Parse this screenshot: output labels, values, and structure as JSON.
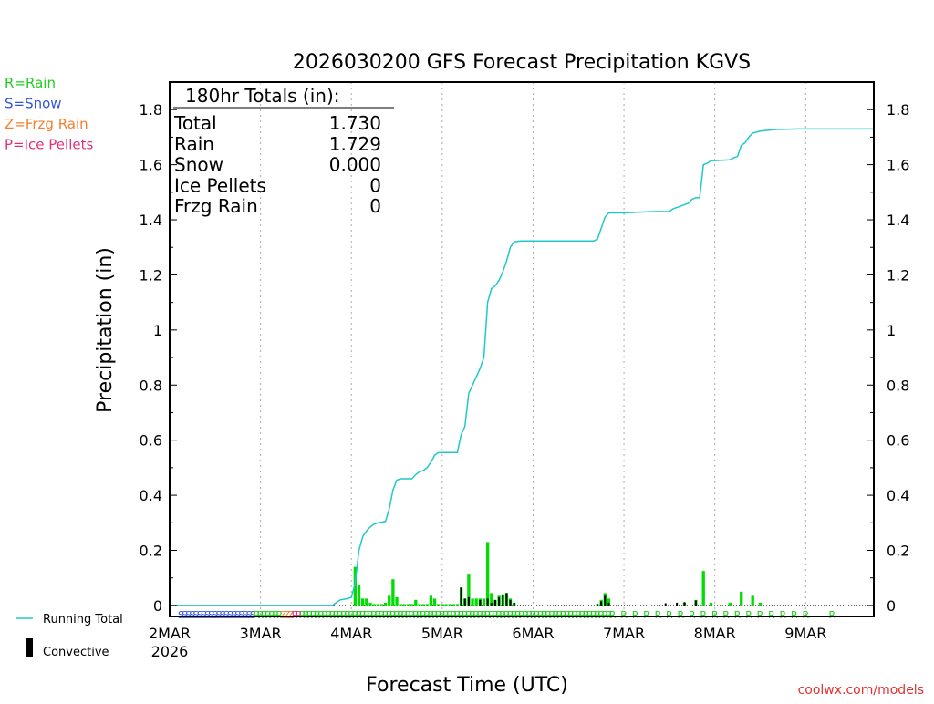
{
  "chart_data": {
    "type": "bar",
    "title": "2026030200 GFS Forecast Precipitation KGVS",
    "xlabel": "Forecast Time (UTC)",
    "ylabel": "Precipitation (in)",
    "ylim": [
      -0.04,
      1.9
    ],
    "xlim_hours": [
      0,
      186
    ],
    "y_ticks": [
      0,
      0.2,
      0.4,
      0.6,
      0.8,
      1,
      1.2,
      1.4,
      1.6,
      1.8
    ],
    "y_tick_labels": [
      "0",
      "0.2",
      "0.4",
      "0.6",
      "0.8",
      "1",
      "1.2",
      "1.4",
      "1.6",
      "1.8"
    ],
    "x_ticks": [
      {
        "hour": 0,
        "label": "2MAR",
        "sublabel": "2026"
      },
      {
        "hour": 24,
        "label": "3MAR"
      },
      {
        "hour": 48,
        "label": "4MAR"
      },
      {
        "hour": 72,
        "label": "5MAR"
      },
      {
        "hour": 96,
        "label": "6MAR"
      },
      {
        "hour": 120,
        "label": "7MAR"
      },
      {
        "hour": 144,
        "label": "8MAR"
      },
      {
        "hour": 168,
        "label": "9MAR"
      }
    ],
    "ptype_legend": [
      {
        "text": "R=Rain",
        "color": "#22cc22"
      },
      {
        "text": "S=Snow",
        "color": "#3355dd"
      },
      {
        "text": "Z=Frzg Rain",
        "color": "#f08030"
      },
      {
        "text": "P=Ice Pellets",
        "color": "#e0307a"
      }
    ],
    "series_legend": [
      {
        "name": "Running Total",
        "color": "#20c8c8",
        "kind": "line"
      },
      {
        "name": "Convective",
        "color": "#000000",
        "kind": "bar"
      }
    ],
    "totals": {
      "header": "180hr Totals (in):",
      "rows": [
        {
          "label": "Total",
          "value": "1.730"
        },
        {
          "label": "Rain",
          "value": "1.729"
        },
        {
          "label": "Snow",
          "value": "0.000"
        },
        {
          "label": "Ice Pellets",
          "value": "0"
        },
        {
          "label": "Frzg Rain",
          "value": "0"
        }
      ]
    },
    "series": [
      {
        "name": "Running Total",
        "color": "#20c8c8",
        "points": [
          [
            0,
            0
          ],
          [
            24,
            0
          ],
          [
            43,
            0
          ],
          [
            44,
            0.01
          ],
          [
            45,
            0.02
          ],
          [
            47,
            0.025
          ],
          [
            48,
            0.03
          ],
          [
            49,
            0.08
          ],
          [
            50,
            0.2
          ],
          [
            51,
            0.25
          ],
          [
            52,
            0.27
          ],
          [
            53,
            0.285
          ],
          [
            54,
            0.295
          ],
          [
            55,
            0.3
          ],
          [
            57,
            0.305
          ],
          [
            58,
            0.35
          ],
          [
            59,
            0.42
          ],
          [
            60,
            0.455
          ],
          [
            61,
            0.46
          ],
          [
            62,
            0.46
          ],
          [
            63,
            0.46
          ],
          [
            64,
            0.46
          ],
          [
            65,
            0.475
          ],
          [
            66,
            0.485
          ],
          [
            67,
            0.49
          ],
          [
            68,
            0.5
          ],
          [
            69,
            0.52
          ],
          [
            70,
            0.545
          ],
          [
            71,
            0.555
          ],
          [
            72,
            0.555
          ],
          [
            73,
            0.555
          ],
          [
            74,
            0.555
          ],
          [
            75,
            0.555
          ],
          [
            76,
            0.555
          ],
          [
            77,
            0.62
          ],
          [
            78,
            0.65
          ],
          [
            79,
            0.77
          ],
          [
            80,
            0.8
          ],
          [
            81,
            0.83
          ],
          [
            82,
            0.86
          ],
          [
            83,
            0.9
          ],
          [
            84,
            1.1
          ],
          [
            85,
            1.15
          ],
          [
            86,
            1.16
          ],
          [
            87,
            1.18
          ],
          [
            88,
            1.21
          ],
          [
            89,
            1.25
          ],
          [
            90,
            1.3
          ],
          [
            91,
            1.32
          ],
          [
            92,
            1.322
          ],
          [
            93,
            1.323
          ],
          [
            94,
            1.323
          ],
          [
            96,
            1.323
          ],
          [
            100,
            1.323
          ],
          [
            105,
            1.323
          ],
          [
            112,
            1.323
          ],
          [
            113,
            1.33
          ],
          [
            114,
            1.37
          ],
          [
            115,
            1.41
          ],
          [
            116,
            1.425
          ],
          [
            117,
            1.425
          ],
          [
            120,
            1.425
          ],
          [
            124,
            1.428
          ],
          [
            128,
            1.43
          ],
          [
            132,
            1.43
          ],
          [
            133,
            1.44
          ],
          [
            134,
            1.445
          ],
          [
            135,
            1.45
          ],
          [
            136,
            1.455
          ],
          [
            137,
            1.46
          ],
          [
            138,
            1.475
          ],
          [
            139,
            1.48
          ],
          [
            140,
            1.48
          ],
          [
            141,
            1.6
          ],
          [
            142,
            1.605
          ],
          [
            143,
            1.615
          ],
          [
            144,
            1.615
          ],
          [
            148,
            1.618
          ],
          [
            149,
            1.625
          ],
          [
            150,
            1.63
          ],
          [
            151,
            1.67
          ],
          [
            152,
            1.68
          ],
          [
            153,
            1.7
          ],
          [
            154,
            1.715
          ],
          [
            156,
            1.722
          ],
          [
            160,
            1.728
          ],
          [
            166,
            1.73
          ],
          [
            186,
            1.73
          ]
        ]
      },
      {
        "name": "Precipitation",
        "color": "#00dd00",
        "bars": [
          [
            49,
            0.14
          ],
          [
            50,
            0.075
          ],
          [
            51,
            0.025
          ],
          [
            52,
            0.025
          ],
          [
            53,
            0.01
          ],
          [
            54,
            0.005
          ],
          [
            55,
            0.005
          ],
          [
            56,
            0.005
          ],
          [
            57,
            0.01
          ],
          [
            58,
            0.035
          ],
          [
            59,
            0.095
          ],
          [
            60,
            0.03
          ],
          [
            61,
            0.005
          ],
          [
            62,
            0.005
          ],
          [
            63,
            0.005
          ],
          [
            64,
            0.005
          ],
          [
            65,
            0.02
          ],
          [
            66,
            0.005
          ],
          [
            67,
            0.005
          ],
          [
            68,
            0.005
          ],
          [
            69,
            0.035
          ],
          [
            70,
            0.025
          ],
          [
            71,
            0.005
          ],
          [
            72,
            0.005
          ],
          [
            73,
            0.005
          ],
          [
            74,
            0.005
          ],
          [
            75,
            0.005
          ],
          [
            76,
            0.005
          ],
          [
            77,
            0.065
          ],
          [
            78,
            0.025
          ],
          [
            79,
            0.115
          ],
          [
            80,
            0.025
          ],
          [
            81,
            0.025
          ],
          [
            82,
            0.025
          ],
          [
            83,
            0.025
          ],
          [
            84,
            0.23
          ],
          [
            85,
            0.045
          ],
          [
            86,
            0.02
          ],
          [
            87,
            0.035
          ],
          [
            88,
            0.04
          ],
          [
            89,
            0.045
          ],
          [
            90,
            0.025
          ],
          [
            91,
            0.01
          ],
          [
            113,
            0.005
          ],
          [
            114,
            0.02
          ],
          [
            115,
            0.045
          ],
          [
            116,
            0.025
          ],
          [
            136,
            0.01
          ],
          [
            139,
            0.02
          ],
          [
            141,
            0.125
          ],
          [
            143,
            0.01
          ],
          [
            148,
            0.01
          ],
          [
            151,
            0.05
          ],
          [
            154,
            0.035
          ],
          [
            156,
            0.01
          ]
        ]
      },
      {
        "name": "Convective",
        "color": "#000000",
        "bars": [
          [
            77,
            0.065
          ],
          [
            78,
            0.025
          ],
          [
            79,
            0.03
          ],
          [
            82,
            0.02
          ],
          [
            84,
            0.025
          ],
          [
            85,
            0.01
          ],
          [
            86,
            0.02
          ],
          [
            87,
            0.03
          ],
          [
            88,
            0.04
          ],
          [
            89,
            0.045
          ],
          [
            90,
            0.02
          ],
          [
            91,
            0.01
          ],
          [
            113,
            0.005
          ],
          [
            114,
            0.015
          ],
          [
            115,
            0.035
          ],
          [
            116,
            0.01
          ],
          [
            131,
            0.008
          ],
          [
            134,
            0.01
          ],
          [
            136,
            0.012
          ],
          [
            139,
            0.018
          ]
        ]
      }
    ],
    "ptype_strip": [
      {
        "letter": "S",
        "color": "#3355dd",
        "hours": [
          3,
          4,
          5,
          6,
          7,
          8,
          9,
          10,
          11,
          12,
          13,
          14,
          15,
          16,
          17,
          18,
          19,
          20,
          21,
          22
        ]
      },
      {
        "letter": "R",
        "color": "#22cc22",
        "hours": [
          23,
          24,
          25,
          26,
          27,
          28,
          29,
          35,
          36,
          37,
          38,
          39,
          40,
          41,
          42,
          43,
          44,
          45,
          46,
          47,
          48,
          49,
          50,
          51,
          52,
          53,
          54,
          55,
          56,
          57,
          58,
          59,
          60,
          61,
          62,
          63,
          64,
          65,
          66,
          67,
          68,
          69,
          70,
          71,
          72,
          73,
          74,
          75,
          76,
          77,
          78,
          79,
          80,
          81,
          82,
          83,
          84,
          85,
          86,
          87,
          88,
          89,
          90,
          91,
          92,
          93,
          94,
          95,
          96,
          97,
          98,
          99,
          100,
          101,
          102,
          103,
          104,
          105,
          106,
          107,
          108,
          109,
          110,
          111,
          112,
          113,
          114,
          115,
          116,
          117,
          120,
          123,
          126,
          129,
          132,
          135,
          138,
          141,
          144,
          147,
          150,
          153,
          156,
          159,
          162,
          165,
          168,
          175
        ]
      },
      {
        "letter": "Z",
        "color": "#f08030",
        "hours": [
          30,
          31,
          32
        ]
      },
      {
        "letter": "P",
        "color": "#e0307a",
        "hours": [
          33,
          34
        ]
      }
    ]
  },
  "footer": {
    "credit": "coolwx.com/models"
  }
}
